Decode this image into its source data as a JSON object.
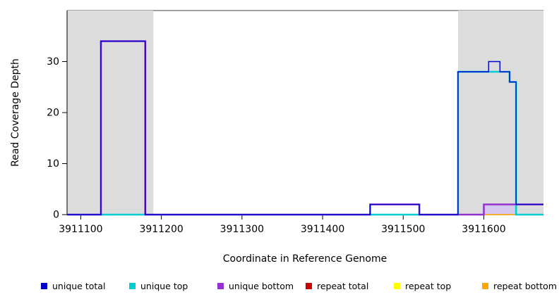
{
  "chart_data": {
    "type": "line",
    "subtype": "step",
    "xlabel": "Coordinate in Reference Genome",
    "ylabel": "Read Coverage Depth",
    "xlim": [
      3911083,
      3911674
    ],
    "ylim": [
      0,
      40
    ],
    "xticks": [
      3911100,
      3911200,
      3911300,
      3911400,
      3911500,
      3911600
    ],
    "yticks": [
      0,
      10,
      20,
      30
    ],
    "grid": false,
    "legend_position": "bottom",
    "shaded_regions": [
      {
        "x0": 3911083,
        "x1": 3911190,
        "color": "#dcdcdc"
      },
      {
        "x0": 3911568,
        "x1": 3911674,
        "color": "#dcdcdc"
      }
    ],
    "fill_regions": [
      {
        "x0": 3911600,
        "x1": 3911640,
        "y0": 0,
        "y1": 2,
        "color": "#d5c9ef"
      }
    ],
    "series": [
      {
        "name": "repeat total",
        "color": "#cc0000",
        "width": 1.2,
        "points": [
          [
            3911083,
            0
          ]
        ]
      },
      {
        "name": "repeat top",
        "color": "#ffff00",
        "width": 1.2,
        "points": [
          [
            3911083,
            0
          ]
        ]
      },
      {
        "name": "repeat bottom",
        "color": "#ffa500",
        "width": 1.2,
        "points": [
          [
            3911083,
            0
          ]
        ]
      },
      {
        "name": "unique top",
        "color": "#00ced1",
        "width": 2.6,
        "points": [
          [
            3911083,
            0
          ],
          [
            3911568,
            28
          ],
          [
            3911632,
            26
          ],
          [
            3911640,
            0
          ]
        ]
      },
      {
        "name": "unique bottom",
        "color": "#9333cf",
        "width": 2.6,
        "points": [
          [
            3911083,
            0
          ],
          [
            3911125,
            34
          ],
          [
            3911180,
            0
          ],
          [
            3911459,
            2
          ],
          [
            3911520,
            0
          ],
          [
            3911600,
            2
          ]
        ]
      },
      {
        "name": "unique total",
        "color": "#0000cd",
        "width": 1.4,
        "points": [
          [
            3911083,
            0
          ],
          [
            3911125,
            34
          ],
          [
            3911180,
            0
          ],
          [
            3911459,
            2
          ],
          [
            3911520,
            0
          ],
          [
            3911568,
            28
          ],
          [
            3911606,
            30
          ],
          [
            3911620,
            28
          ],
          [
            3911632,
            26
          ],
          [
            3911640,
            2
          ]
        ]
      }
    ]
  },
  "legend": {
    "items": [
      {
        "label": "unique total",
        "color": "#0000cd"
      },
      {
        "label": "unique top",
        "color": "#00ced1"
      },
      {
        "label": "unique bottom",
        "color": "#9333cf"
      },
      {
        "label": "repeat total",
        "color": "#cc0000"
      },
      {
        "label": "repeat top",
        "color": "#ffff00"
      },
      {
        "label": "repeat bottom",
        "color": "#ffa500"
      }
    ]
  }
}
